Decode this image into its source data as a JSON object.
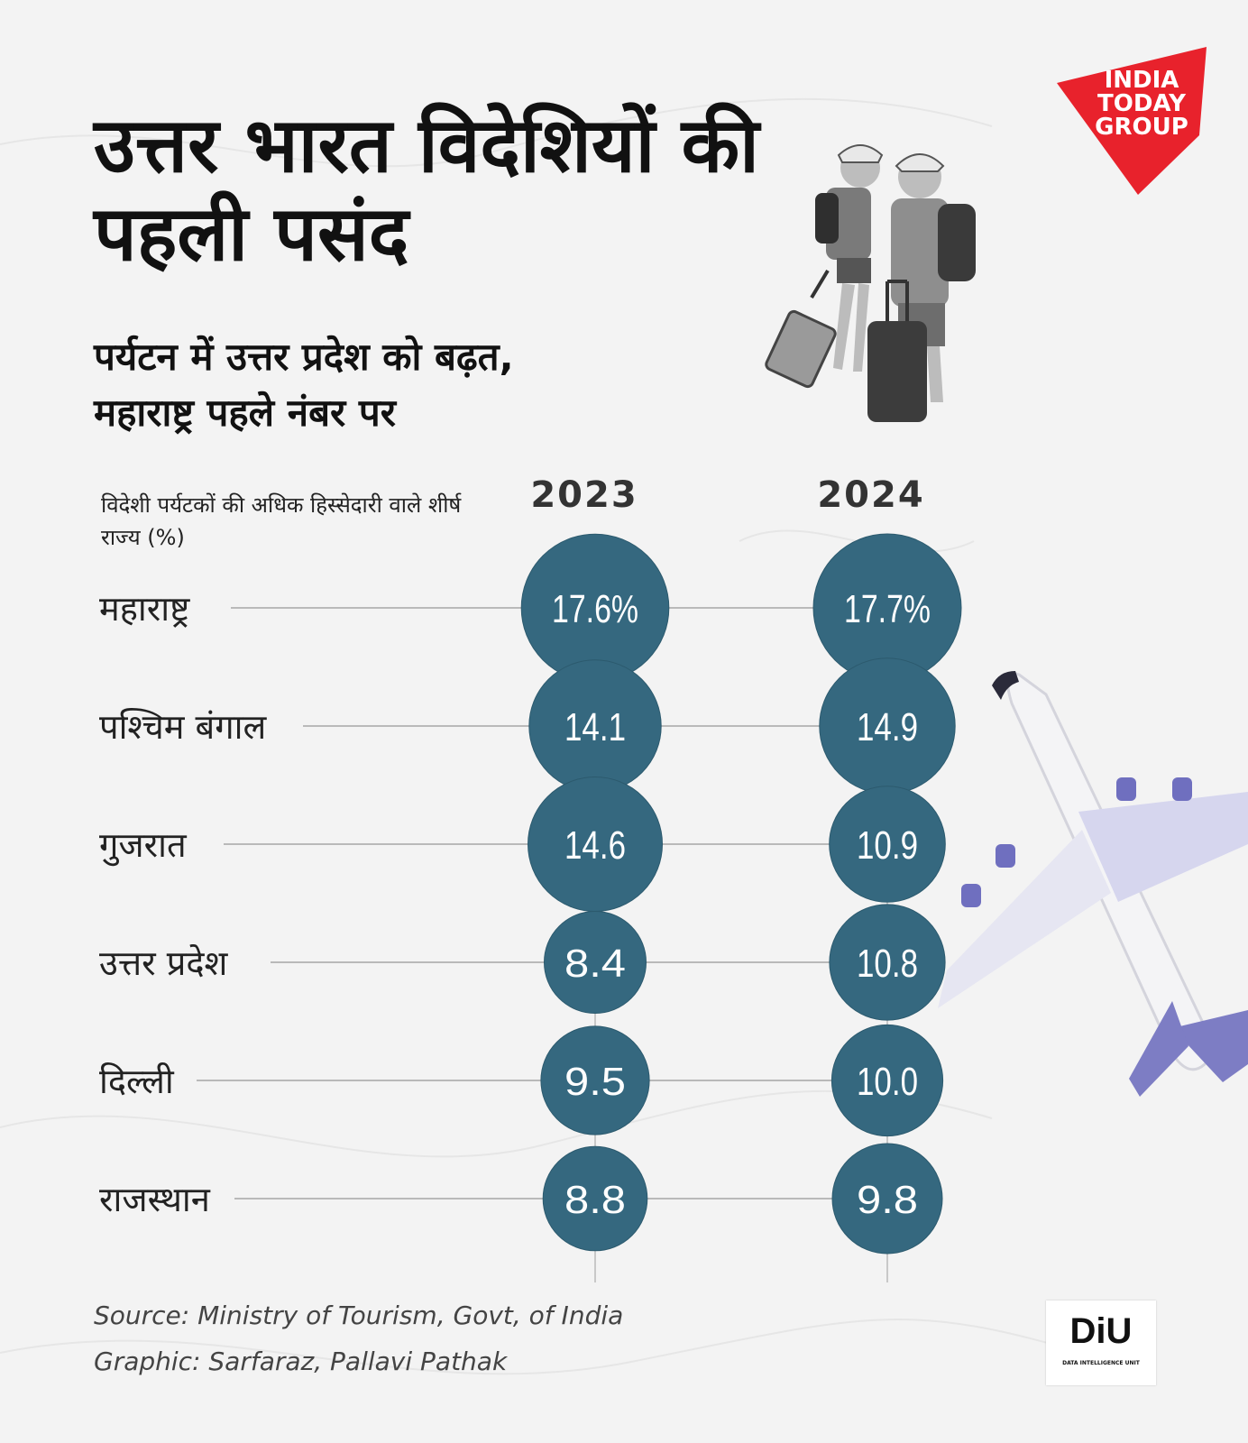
{
  "header": {
    "title": "उत्तर भारत विदेशियों की पहली पसंद",
    "subtitle_line1": "पर्यटन में उत्तर प्रदेश को बढ़त,",
    "subtitle_line2": "महाराष्ट्र पहले नंबर पर"
  },
  "brand": {
    "line1": "INDIA",
    "line2": "TODAY",
    "line3": "GROUP",
    "color": "#e8222c"
  },
  "chart_data": {
    "type": "table",
    "metric_label": "विदेशी पर्यटकों की अधिक हिस्सेदारी वाले शीर्ष राज्य (%)",
    "columns": [
      "2023",
      "2024"
    ],
    "rows": [
      {
        "state": "महाराष्ट्र",
        "values": [
          17.6,
          17.7
        ],
        "labels": [
          "17.6%",
          "17.7%"
        ]
      },
      {
        "state": "पश्चिम बंगाल",
        "values": [
          14.1,
          14.9
        ],
        "labels": [
          "14.1",
          "14.9"
        ]
      },
      {
        "state": "गुजरात",
        "values": [
          14.6,
          10.9
        ],
        "labels": [
          "14.6",
          "10.9"
        ]
      },
      {
        "state": "उत्तर प्रदेश",
        "values": [
          8.4,
          10.8
        ],
        "labels": [
          "8.4",
          "10.8"
        ]
      },
      {
        "state": "दिल्ली",
        "values": [
          9.5,
          10.0
        ],
        "labels": [
          "9.5",
          "10.0"
        ]
      },
      {
        "state": "राजस्थान",
        "values": [
          8.8,
          9.8
        ],
        "labels": [
          "8.8",
          "9.8"
        ]
      }
    ],
    "bubble_color": "#35687f",
    "encoding": "circle area proportional to value"
  },
  "footer": {
    "source": "Source: Ministry of Tourism, Govt, of India",
    "graphic": "Graphic:  Sarfaraz, Pallavi Pathak",
    "diu_logo": "DiU",
    "diu_sub": "DATA INTELLIGENCE UNIT"
  },
  "icons": [
    "travelers-icon",
    "airplane-icon"
  ]
}
